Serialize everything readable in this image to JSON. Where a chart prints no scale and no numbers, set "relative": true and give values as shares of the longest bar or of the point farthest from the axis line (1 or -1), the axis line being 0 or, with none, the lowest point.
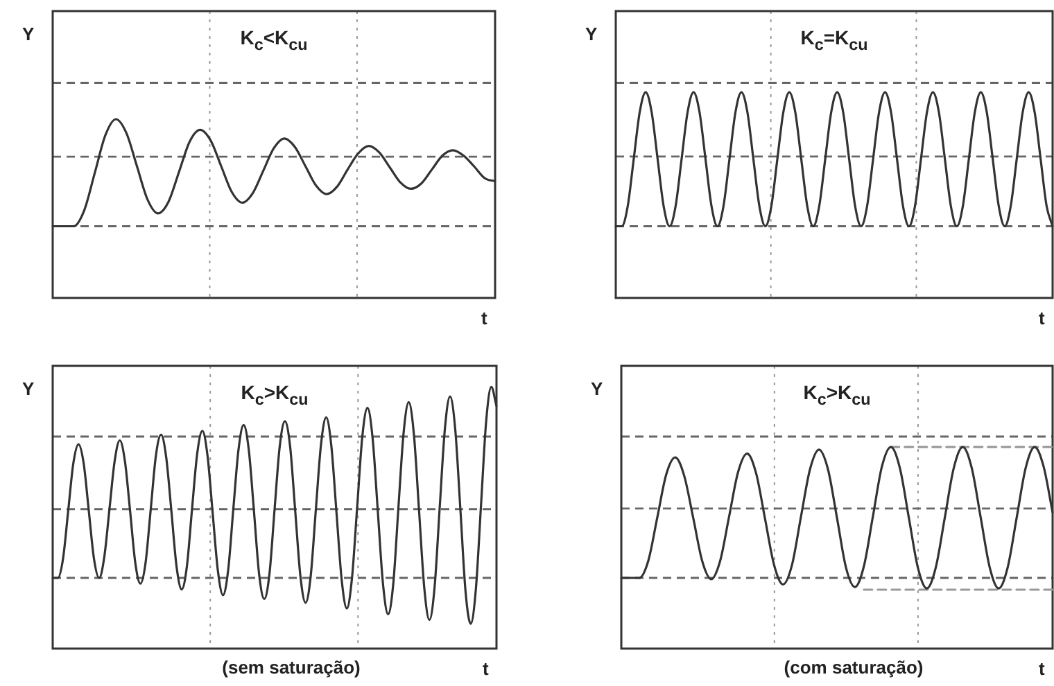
{
  "chart_data": [
    {
      "type": "line",
      "title": "K$_{c}$<K$_{cu}$",
      "xlabel": "t",
      "ylabel": "Y",
      "relative": true,
      "grid": "x",
      "ref_lines": [
        {
          "axis": "y",
          "value": 0,
          "color": "#666666",
          "line_style": "dashed"
        },
        {
          "axis": "y",
          "value": 0.65,
          "color": "#666666",
          "line_style": "dashed"
        },
        {
          "axis": "y",
          "value": 1.34,
          "color": "#666666",
          "line_style": "dashed"
        }
      ],
      "categories": [
        null,
        null,
        null,
        null,
        null,
        null,
        null,
        null,
        null,
        null,
        null,
        null,
        null,
        null,
        null,
        null,
        null,
        null,
        null,
        null,
        null,
        null,
        null,
        null,
        null,
        null,
        null,
        null,
        null,
        null,
        null,
        null,
        null,
        null,
        null,
        null,
        null,
        null,
        null,
        null,
        null,
        null,
        null
      ],
      "series": [
        {
          "color": "#333333",
          "values": [
            0,
            0,
            0,
            0.15,
            0.5,
            0.85,
            1,
            0.87,
            0.56,
            0.25,
            0.12,
            0.23,
            0.51,
            0.79,
            0.9,
            0.8,
            0.56,
            0.32,
            0.22,
            0.31,
            0.52,
            0.73,
            0.82,
            0.74,
            0.56,
            0.38,
            0.3,
            0.37,
            0.53,
            0.68,
            0.75,
            0.69,
            0.55,
            0.41,
            0.35,
            0.4,
            0.53,
            0.66,
            0.71,
            0.66,
            0.56,
            0.45,
            0.42
          ]
        }
      ]
    },
    {
      "type": "line",
      "title": "K$_{c}$=K$_{cu}$",
      "xlabel": "t",
      "ylabel": "Y",
      "relative": true,
      "grid": "x",
      "ref_lines": [
        {
          "axis": "y",
          "value": 0,
          "color": "#666666",
          "line_style": "dashed"
        },
        {
          "axis": "y",
          "value": 0.52,
          "color": "#666666",
          "line_style": "dashed"
        },
        {
          "axis": "y",
          "value": 1.07,
          "color": "#666666",
          "line_style": "dashed"
        }
      ],
      "categories": [
        null,
        null,
        null,
        null,
        null,
        null,
        null,
        null,
        null,
        null,
        null,
        null,
        null,
        null,
        null,
        null,
        null,
        null,
        null,
        null,
        null,
        null,
        null,
        null,
        null,
        null,
        null,
        null,
        null,
        null,
        null,
        null,
        null,
        null,
        null,
        null,
        null,
        null,
        null,
        null,
        null,
        null,
        null,
        null,
        null,
        null,
        null,
        null,
        null,
        null,
        null,
        null,
        null,
        null,
        null,
        null,
        null,
        null,
        null,
        null,
        null,
        null,
        null,
        null,
        null,
        null,
        null,
        null,
        null,
        null,
        null,
        null,
        null,
        null
      ],
      "series": [
        {
          "color": "#333333",
          "values": [
            0,
            0,
            0.15,
            0.5,
            0.85,
            1,
            0.85,
            0.5,
            0.15,
            0,
            0.15,
            0.5,
            0.85,
            1,
            0.85,
            0.5,
            0.15,
            0,
            0.15,
            0.5,
            0.85,
            1,
            0.85,
            0.5,
            0.15,
            0,
            0.15,
            0.5,
            0.85,
            1,
            0.85,
            0.5,
            0.15,
            0,
            0.15,
            0.5,
            0.85,
            1,
            0.85,
            0.5,
            0.15,
            0,
            0.15,
            0.5,
            0.85,
            1,
            0.85,
            0.5,
            0.15,
            0,
            0.15,
            0.5,
            0.85,
            1,
            0.85,
            0.5,
            0.15,
            0,
            0.15,
            0.5,
            0.85,
            1,
            0.85,
            0.5,
            0.15,
            0,
            0.15,
            0.5,
            0.85,
            1,
            0.85,
            0.5,
            0.15,
            0
          ]
        }
      ]
    },
    {
      "type": "line",
      "title": "K$_{c}$>K$_{cu}$",
      "xlabel": "t",
      "ylabel": "Y",
      "relative": true,
      "grid": "x",
      "annotations": [
        "(sem saturação)"
      ],
      "ref_lines": [
        {
          "axis": "y",
          "value": 0,
          "color": "#666666",
          "line_style": "dashed"
        },
        {
          "axis": "y",
          "value": 0.36,
          "color": "#666666",
          "line_style": "dashed"
        },
        {
          "axis": "y",
          "value": 0.74,
          "color": "#666666",
          "line_style": "dashed"
        }
      ],
      "categories": [
        null,
        null,
        null,
        null,
        null,
        null,
        null,
        null,
        null,
        null,
        null,
        null,
        null,
        null,
        null,
        null,
        null,
        null,
        null,
        null,
        null,
        null,
        null,
        null,
        null,
        null,
        null,
        null,
        null,
        null,
        null,
        null,
        null,
        null,
        null,
        null,
        null,
        null,
        null,
        null,
        null,
        null,
        null,
        null,
        null,
        null,
        null,
        null,
        null,
        null,
        null,
        null,
        null,
        null,
        null,
        null,
        null,
        null,
        null,
        null,
        null,
        null,
        null,
        null,
        null,
        null,
        null,
        null,
        null,
        null,
        null,
        null,
        null,
        null,
        null,
        null,
        null,
        null,
        null,
        null,
        null,
        null,
        null,
        null,
        null,
        null,
        null
      ],
      "series": [
        {
          "color": "#333333",
          "values": [
            0,
            0,
            0.1,
            0.35,
            0.6,
            0.7,
            0.6,
            0.35,
            0.1,
            0,
            0.11,
            0.36,
            0.61,
            0.72,
            0.61,
            0.35,
            0.08,
            -0.03,
            0.08,
            0.36,
            0.64,
            0.75,
            0.63,
            0.35,
            0.06,
            -0.06,
            0.06,
            0.36,
            0.65,
            0.77,
            0.64,
            0.34,
            0.04,
            -0.09,
            0.04,
            0.36,
            0.67,
            0.8,
            0.67,
            0.35,
            0.02,
            -0.11,
            0.02,
            0.36,
            0.69,
            0.82,
            0.69,
            0.35,
            0.01,
            -0.13,
            0.01,
            0.36,
            0.7,
            0.84,
            0.69,
            0.34,
            -0.01,
            -0.16,
            0,
            0.37,
            0.74,
            0.89,
            0.73,
            0.35,
            -0.03,
            -0.19,
            -0.03,
            0.37,
            0.76,
            0.92,
            0.75,
            0.35,
            -0.05,
            -0.22,
            -0.05,
            0.37,
            0.78,
            0.95,
            0.78,
            0.36,
            -0.07,
            -0.24,
            -0.06,
            0.38,
            0.82,
            1,
            0.9
          ]
        }
      ]
    },
    {
      "type": "line",
      "title": "K$_{c}$>K$_{cu}$",
      "xlabel": "t",
      "ylabel": "Y",
      "relative": true,
      "grid": "x",
      "annotations": [
        "(com saturação)"
      ],
      "ref_lines": [
        {
          "axis": "y",
          "value": 0,
          "color": "#666666",
          "line_style": "dashed"
        },
        {
          "axis": "y",
          "value": 0.53,
          "color": "#666666",
          "line_style": "dashed"
        },
        {
          "axis": "y",
          "value": 1.08,
          "color": "#666666",
          "line_style": "dashed"
        }
      ],
      "categories": [
        null,
        null,
        null,
        null,
        null,
        null,
        null,
        null,
        null,
        null,
        null,
        null,
        null,
        null,
        null,
        null,
        null,
        null,
        null,
        null,
        null,
        null,
        null,
        null,
        null,
        null,
        null,
        null,
        null,
        null,
        null,
        null,
        null,
        null,
        null,
        null,
        null,
        null,
        null,
        null,
        null,
        null,
        null,
        null,
        null,
        null,
        null,
        null,
        null
      ],
      "series": [
        {
          "color": "#333333",
          "values": [
            0,
            0,
            0,
            0.13,
            0.46,
            0.79,
            0.92,
            0.78,
            0.46,
            0.13,
            -0.01,
            0.13,
            0.47,
            0.81,
            0.95,
            0.8,
            0.45,
            0.1,
            -0.05,
            0.1,
            0.47,
            0.83,
            0.98,
            0.83,
            0.46,
            0.08,
            -0.07,
            0.09,
            0.47,
            0.85,
            1,
            0.84,
            0.46,
            0.08,
            -0.08,
            0.08,
            0.46,
            0.84,
            1,
            0.84,
            0.46,
            0.08,
            -0.08,
            0.08,
            0.46,
            0.84,
            1,
            0.85,
            0.5
          ]
        },
        {
          "color": "#999999",
          "line_style": "dashed",
          "values": [
            null,
            null,
            null,
            null,
            null,
            null,
            null,
            null,
            null,
            null,
            null,
            null,
            null,
            null,
            null,
            null,
            null,
            null,
            null,
            null,
            null,
            null,
            null,
            null,
            null,
            null,
            null,
            null,
            null,
            null,
            1,
            1,
            1,
            1,
            1,
            1,
            1,
            1,
            1,
            1,
            1,
            1,
            1,
            1,
            1,
            1,
            1,
            1,
            1
          ]
        },
        {
          "color": "#999999",
          "line_style": "dashed",
          "values": [
            null,
            null,
            null,
            null,
            null,
            null,
            null,
            null,
            null,
            null,
            null,
            null,
            null,
            null,
            null,
            null,
            null,
            null,
            null,
            null,
            null,
            null,
            null,
            null,
            null,
            null,
            null,
            -0.09,
            -0.09,
            -0.09,
            -0.09,
            -0.09,
            -0.09,
            -0.09,
            -0.09,
            -0.09,
            -0.09,
            -0.09,
            -0.09,
            -0.09,
            -0.09,
            -0.09,
            -0.09,
            -0.09,
            -0.09,
            -0.09,
            -0.09,
            -0.09,
            -0.09
          ]
        }
      ]
    }
  ]
}
